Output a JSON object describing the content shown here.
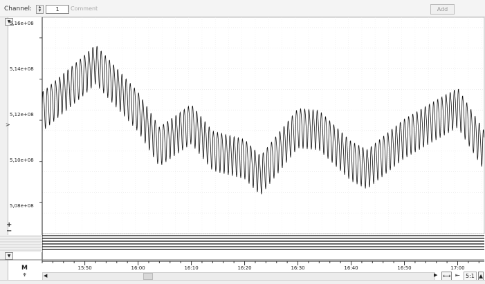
{
  "toolbar": {
    "channel_label": "Channel:",
    "channel_value": "1",
    "comment_placeholder": "Comment",
    "add_label": "Add"
  },
  "side": {
    "plus": "+",
    "minus": "−",
    "marker": "M"
  },
  "zoom": {
    "ratio": "5:1"
  },
  "chart_data": {
    "type": "line",
    "ylabel": ">",
    "yticks": [
      "5,16e+08",
      "5,14e+08",
      "5,12e+08",
      "5,10e+08",
      "5,08e+08"
    ],
    "ytick_values": [
      516000000,
      514000000,
      512000000,
      510000000,
      508000000
    ],
    "ylim": [
      506500000,
      517000000
    ],
    "xticks": [
      "15:50",
      "16:00",
      "16:10",
      "16:20",
      "16:30",
      "16:40",
      "16:50",
      "17:00"
    ],
    "xtick_minutes": [
      950,
      960,
      970,
      980,
      990,
      1000,
      1010,
      1020
    ],
    "xlim_minutes": [
      942,
      1025
    ],
    "trend": {
      "minutes": [
        942,
        950,
        952,
        960,
        964,
        970,
        974,
        980,
        983,
        990,
        994,
        1000,
        1003,
        1010,
        1020,
        1025
      ],
      "values": [
        512500000,
        514300000,
        514800000,
        512500000,
        510800000,
        511900000,
        510600000,
        510200000,
        509400000,
        511700000,
        511600000,
        510100000,
        509700000,
        511200000,
        512700000,
        510600000
      ]
    },
    "oscillation": {
      "period_minutes": 0.78,
      "amplitude": 1000000
    },
    "grid": true
  }
}
